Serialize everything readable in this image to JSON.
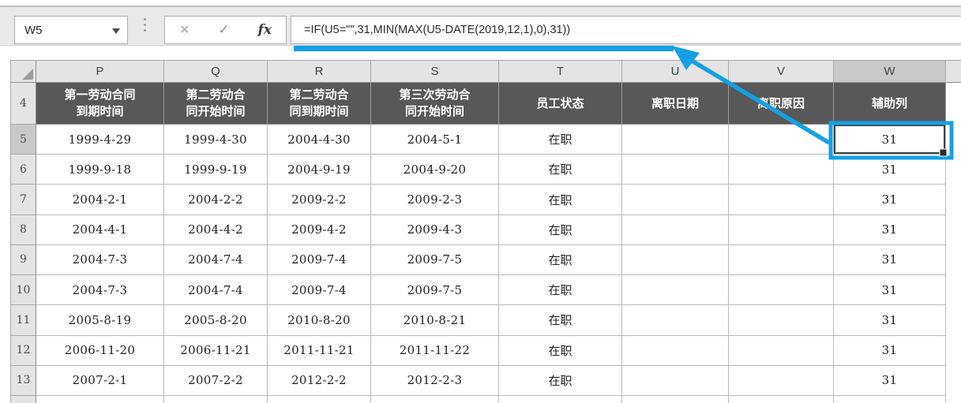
{
  "toolbar": {
    "name_box_value": "W5",
    "cancel_icon": "✕",
    "enter_icon": "✓",
    "fx_label": "fx",
    "formula": "=IF(U5=\"\",31,MIN(MAX(U5-DATE(2019,12,1),0),31))"
  },
  "colors": {
    "accent_blue": "#15A0E3",
    "header_dark": "#585858",
    "selected_header_gray": "#c9c9c9"
  },
  "sheet": {
    "column_letters": [
      "P",
      "Q",
      "R",
      "S",
      "T",
      "U",
      "V",
      "W"
    ],
    "selected_column": "W",
    "selected_row": "5",
    "selected_cell": "W5",
    "header_row": {
      "number": "4",
      "cells": [
        {
          "col": "P",
          "lines": [
            "第一劳动合同",
            "到期时间"
          ]
        },
        {
          "col": "Q",
          "lines": [
            "第二劳动合",
            "同开始时间"
          ]
        },
        {
          "col": "R",
          "lines": [
            "第二劳动合",
            "同到期时间"
          ]
        },
        {
          "col": "S",
          "lines": [
            "第三次劳动合",
            "同开始时间"
          ]
        },
        {
          "col": "T",
          "lines": [
            "员工状态"
          ]
        },
        {
          "col": "U",
          "lines": [
            "离职日期"
          ]
        },
        {
          "col": "V",
          "lines": [
            "离职原因"
          ]
        },
        {
          "col": "W",
          "lines": [
            "辅助列"
          ]
        }
      ]
    },
    "rows": [
      {
        "number": "5",
        "cells": [
          "1999-4-29",
          "1999-4-30",
          "2004-4-30",
          "2004-5-1",
          "在职",
          "",
          "",
          "31"
        ]
      },
      {
        "number": "6",
        "cells": [
          "1999-9-18",
          "1999-9-19",
          "2004-9-19",
          "2004-9-20",
          "在职",
          "",
          "",
          "31"
        ]
      },
      {
        "number": "7",
        "cells": [
          "2004-2-1",
          "2004-2-2",
          "2009-2-2",
          "2009-2-3",
          "在职",
          "",
          "",
          "31"
        ]
      },
      {
        "number": "8",
        "cells": [
          "2004-4-1",
          "2004-4-2",
          "2009-4-2",
          "2009-4-3",
          "在职",
          "",
          "",
          "31"
        ]
      },
      {
        "number": "9",
        "cells": [
          "2004-7-3",
          "2004-7-4",
          "2009-7-4",
          "2009-7-5",
          "在职",
          "",
          "",
          "31"
        ]
      },
      {
        "number": "10",
        "cells": [
          "2004-7-3",
          "2004-7-4",
          "2009-7-4",
          "2009-7-5",
          "在职",
          "",
          "",
          "31"
        ]
      },
      {
        "number": "11",
        "cells": [
          "2005-8-19",
          "2005-8-20",
          "2010-8-20",
          "2010-8-21",
          "在职",
          "",
          "",
          "31"
        ]
      },
      {
        "number": "12",
        "cells": [
          "2006-11-20",
          "2006-11-21",
          "2011-11-21",
          "2011-11-22",
          "在职",
          "",
          "",
          "31"
        ]
      },
      {
        "number": "13",
        "cells": [
          "2007-2-1",
          "2007-2-2",
          "2012-2-2",
          "2012-2-3",
          "在职",
          "",
          "",
          "31"
        ]
      }
    ]
  }
}
